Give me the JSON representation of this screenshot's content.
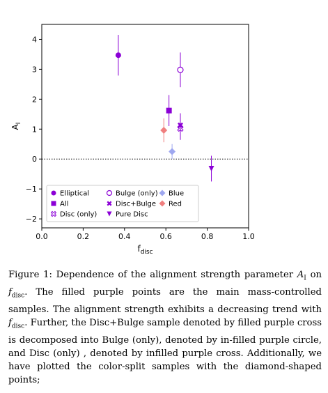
{
  "chart_data": {
    "type": "scatter",
    "xlabel": "f_disc",
    "ylabel": "A_I",
    "xlim": [
      0.0,
      1.0
    ],
    "ylim": [
      -2.3,
      4.5
    ],
    "x_ticks": [
      "0.0",
      "0.2",
      "0.4",
      "0.6",
      "0.8",
      "1.0"
    ],
    "y_ticks": [
      "−2",
      "−1",
      "0",
      "1",
      "2",
      "3",
      "4"
    ],
    "reference_line": {
      "y": 0,
      "style": "dotted"
    },
    "legend_position": "lower-left",
    "series": [
      {
        "name": "Elliptical",
        "marker": "filled-circle",
        "color": "#8b00d6",
        "x": 0.37,
        "y": 3.47,
        "yerr": 0.68
      },
      {
        "name": "All",
        "marker": "filled-square",
        "color": "#8b00d6",
        "x": 0.615,
        "y": 1.62,
        "yerr": 0.52
      },
      {
        "name": "Disc (only)",
        "marker": "open-cross",
        "color": "#8b00d6",
        "x": 0.67,
        "y": 1.02,
        "yerr": 0.38
      },
      {
        "name": "Bulge (only)",
        "marker": "open-circle",
        "color": "#8b00d6",
        "x": 0.67,
        "y": 2.98,
        "yerr": 0.58
      },
      {
        "name": "Disc+Bulge",
        "marker": "filled-cross",
        "color": "#8b00d6",
        "x": 0.67,
        "y": 1.13,
        "yerr": 0.4
      },
      {
        "name": "Pure Disc",
        "marker": "filled-triangle",
        "color": "#8b00d6",
        "x": 0.82,
        "y": -0.32,
        "yerr": 0.43
      },
      {
        "name": "Blue",
        "marker": "diamond",
        "color": "#9ea7f0",
        "x": 0.63,
        "y": 0.25,
        "yerr": 0.25
      },
      {
        "name": "Red",
        "marker": "diamond",
        "color": "#f07f7f",
        "x": 0.59,
        "y": 0.96,
        "yerr": 0.4
      }
    ],
    "legend_columns": [
      [
        "Elliptical",
        "All",
        "Disc (only)"
      ],
      [
        "Bulge (only)",
        "Disc+Bulge",
        "Pure Disc"
      ],
      [
        "Blue",
        "Red"
      ]
    ]
  },
  "caption": {
    "line1_a": "Figure 1: Dependence of the alignment strength parameter ",
    "line1_sym": "A",
    "line1_sub": "I",
    "line2_a": "on ",
    "line2_sym": "f",
    "line2_sub": "disc",
    "line2_b": ". The filled purple points are the main mass-controlled samples. The alignment strength exhibits a decreasing trend with ",
    "line3_sym": "f",
    "line3_sub": "disc",
    "line3_b": ". Further, the Disc+Bulge sample denoted by filled purple cross is decomposed into Bulge (only), denoted by in-filled purple circle, and Disc (only) , denoted by infilled purple cross. Additionally, we have plotted the color-split samples with the diamond-shaped points;"
  }
}
